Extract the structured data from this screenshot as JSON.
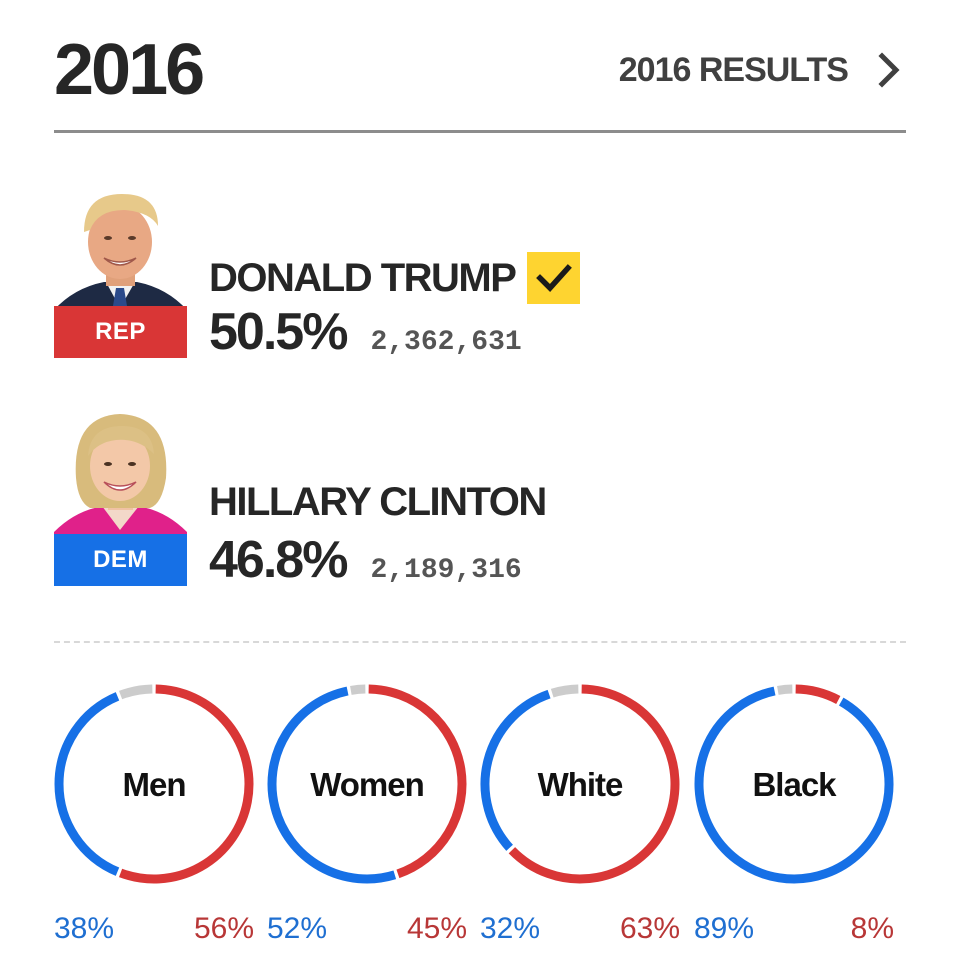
{
  "header": {
    "year": "2016",
    "results_link_label": "2016 RESULTS",
    "chevron_icon": "chevron-right-icon"
  },
  "colors": {
    "rep": "#d93636",
    "dem": "#1670e6",
    "other": "#cccccc",
    "winner_check_bg": "#fed430",
    "dem_text": "#1f6fd1",
    "rep_text": "#b83737"
  },
  "candidates": [
    {
      "name": "DONALD TRUMP",
      "party": "REP",
      "percent": "50.5%",
      "votes": "2,362,631",
      "winner": true,
      "winner_icon": "checkmark-icon"
    },
    {
      "name": "HILLARY CLINTON",
      "party": "DEM",
      "percent": "46.8%",
      "votes": "2,189,316",
      "winner": false
    }
  ],
  "demographics": [
    {
      "label": "Men",
      "dem_pct": "38%",
      "rep_pct": "56%",
      "dem": 38,
      "rep": 56
    },
    {
      "label": "Women",
      "dem_pct": "52%",
      "rep_pct": "45%",
      "dem": 52,
      "rep": 45
    },
    {
      "label": "White",
      "dem_pct": "32%",
      "rep_pct": "63%",
      "dem": 32,
      "rep": 63
    },
    {
      "label": "Black",
      "dem_pct": "89%",
      "rep_pct": "8%",
      "dem": 89,
      "rep": 8
    }
  ]
}
